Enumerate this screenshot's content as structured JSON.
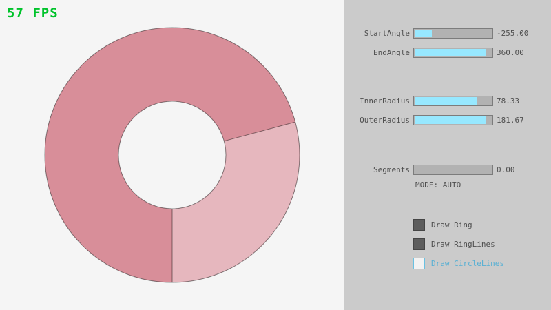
{
  "fps": "57 FPS",
  "colors": {
    "ring_dark": "#d88e99",
    "ring_light": "#e6b7be",
    "outline": "rgba(0,0,0,0.45)",
    "accent_fill": "#97e8ff",
    "panel_bg": "#cbcbcb",
    "canvas_bg": "#f5f5f5",
    "fps_green": "#00c32b"
  },
  "panel": {
    "sliders": [
      {
        "label": "StartAngle",
        "value": "-255.00",
        "fill_pct": 22
      },
      {
        "label": "EndAngle",
        "value": "360.00",
        "fill_pct": 90
      },
      {
        "label": "InnerRadius",
        "value": "78.33",
        "fill_pct": 80
      },
      {
        "label": "OuterRadius",
        "value": "181.67",
        "fill_pct": 91
      },
      {
        "label": "Segments",
        "value": "0.00",
        "fill_pct": 0
      }
    ],
    "mode_label": "MODE: AUTO",
    "checkboxes": [
      {
        "label": "Draw Ring",
        "checked": true
      },
      {
        "label": "Draw RingLines",
        "checked": true
      },
      {
        "label": "Draw CircleLines",
        "checked": false
      }
    ]
  }
}
